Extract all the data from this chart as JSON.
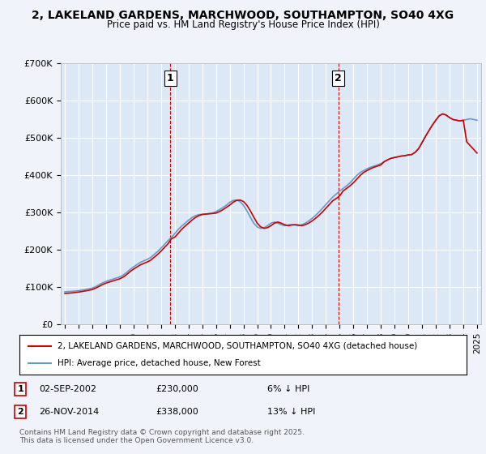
{
  "title": "2, LAKELAND GARDENS, MARCHWOOD, SOUTHAMPTON, SO40 4XG",
  "subtitle": "Price paid vs. HM Land Registry's House Price Index (HPI)",
  "legend_line1": "2, LAKELAND GARDENS, MARCHWOOD, SOUTHAMPTON, SO40 4XG (detached house)",
  "legend_line2": "HPI: Average price, detached house, New Forest",
  "marker1_label": "1",
  "marker1_date": "02-SEP-2002",
  "marker1_price": "£230,000",
  "marker1_note": "6% ↓ HPI",
  "marker2_label": "2",
  "marker2_date": "26-NOV-2014",
  "marker2_price": "£338,000",
  "marker2_note": "13% ↓ HPI",
  "footnote": "Contains HM Land Registry data © Crown copyright and database right 2025.\nThis data is licensed under the Open Government Licence v3.0.",
  "background_color": "#f0f4fa",
  "plot_bg_color": "#dce8f5",
  "red_line_color": "#cc0000",
  "blue_line_color": "#6699cc",
  "grid_color": "#ffffff",
  "marker_vline_color": "#cc0000",
  "ylim": [
    0,
    700000
  ],
  "yticks": [
    0,
    100000,
    200000,
    300000,
    400000,
    500000,
    600000,
    700000
  ],
  "ytick_labels": [
    "£0",
    "£100K",
    "£200K",
    "£300K",
    "£400K",
    "£500K",
    "£600K",
    "£700K"
  ],
  "x_start_year": 1995,
  "x_end_year": 2025,
  "marker1_x": 2002.67,
  "marker2_x": 2014.9,
  "hpi_data_x": [
    1995.0,
    1995.25,
    1995.5,
    1995.75,
    1996.0,
    1996.25,
    1996.5,
    1996.75,
    1997.0,
    1997.25,
    1997.5,
    1997.75,
    1998.0,
    1998.25,
    1998.5,
    1998.75,
    1999.0,
    1999.25,
    1999.5,
    1999.75,
    2000.0,
    2000.25,
    2000.5,
    2000.75,
    2001.0,
    2001.25,
    2001.5,
    2001.75,
    2002.0,
    2002.25,
    2002.5,
    2002.75,
    2003.0,
    2003.25,
    2003.5,
    2003.75,
    2004.0,
    2004.25,
    2004.5,
    2004.75,
    2005.0,
    2005.25,
    2005.5,
    2005.75,
    2006.0,
    2006.25,
    2006.5,
    2006.75,
    2007.0,
    2007.25,
    2007.5,
    2007.75,
    2008.0,
    2008.25,
    2008.5,
    2008.75,
    2009.0,
    2009.25,
    2009.5,
    2009.75,
    2010.0,
    2010.25,
    2010.5,
    2010.75,
    2011.0,
    2011.25,
    2011.5,
    2011.75,
    2012.0,
    2012.25,
    2012.5,
    2012.75,
    2013.0,
    2013.25,
    2013.5,
    2013.75,
    2014.0,
    2014.25,
    2014.5,
    2014.75,
    2015.0,
    2015.25,
    2015.5,
    2015.75,
    2016.0,
    2016.25,
    2016.5,
    2016.75,
    2017.0,
    2017.25,
    2017.5,
    2017.75,
    2018.0,
    2018.25,
    2018.5,
    2018.75,
    2019.0,
    2019.25,
    2019.5,
    2019.75,
    2020.0,
    2020.25,
    2020.5,
    2020.75,
    2021.0,
    2021.25,
    2021.5,
    2021.75,
    2022.0,
    2022.25,
    2022.5,
    2022.75,
    2023.0,
    2023.25,
    2023.5,
    2023.75,
    2024.0,
    2024.25,
    2024.5,
    2024.75,
    2025.0
  ],
  "hpi_data_y": [
    88000,
    88500,
    89000,
    90000,
    91000,
    92500,
    94000,
    96000,
    98000,
    102000,
    107000,
    112000,
    116000,
    119000,
    122000,
    125000,
    128000,
    133000,
    140000,
    148000,
    155000,
    161000,
    167000,
    171000,
    175000,
    180000,
    188000,
    196000,
    205000,
    215000,
    225000,
    234000,
    244000,
    255000,
    264000,
    272000,
    280000,
    287000,
    292000,
    295000,
    296000,
    297000,
    298000,
    299000,
    303000,
    308000,
    314000,
    320000,
    328000,
    333000,
    334000,
    330000,
    320000,
    305000,
    288000,
    272000,
    262000,
    258000,
    260000,
    265000,
    272000,
    275000,
    272000,
    268000,
    265000,
    267000,
    268000,
    267000,
    265000,
    268000,
    272000,
    278000,
    285000,
    293000,
    302000,
    312000,
    322000,
    332000,
    342000,
    350000,
    358000,
    365000,
    372000,
    380000,
    390000,
    400000,
    408000,
    413000,
    418000,
    422000,
    425000,
    428000,
    432000,
    437000,
    442000,
    446000,
    448000,
    450000,
    452000,
    453000,
    455000,
    456000,
    462000,
    472000,
    488000,
    505000,
    520000,
    535000,
    548000,
    560000,
    565000,
    562000,
    555000,
    550000,
    548000,
    546000,
    548000,
    550000,
    552000,
    550000,
    548000
  ],
  "price_line_x": [
    1995.0,
    1995.25,
    1995.5,
    1995.75,
    1996.0,
    1996.25,
    1996.5,
    1996.75,
    1997.0,
    1997.25,
    1997.5,
    1997.75,
    1998.0,
    1998.25,
    1998.5,
    1998.75,
    1999.0,
    1999.25,
    1999.5,
    1999.75,
    2000.0,
    2000.25,
    2000.5,
    2000.75,
    2001.0,
    2001.25,
    2001.5,
    2001.75,
    2002.0,
    2002.25,
    2002.5,
    2002.75,
    2003.0,
    2003.25,
    2003.5,
    2003.75,
    2004.0,
    2004.25,
    2004.5,
    2004.75,
    2005.0,
    2005.25,
    2005.5,
    2005.75,
    2006.0,
    2006.25,
    2006.5,
    2006.75,
    2007.0,
    2007.25,
    2007.5,
    2007.75,
    2008.0,
    2008.25,
    2008.5,
    2008.75,
    2009.0,
    2009.25,
    2009.5,
    2009.75,
    2010.0,
    2010.25,
    2010.5,
    2010.75,
    2011.0,
    2011.25,
    2011.5,
    2011.75,
    2012.0,
    2012.25,
    2012.5,
    2012.75,
    2013.0,
    2013.25,
    2013.5,
    2013.75,
    2014.0,
    2014.25,
    2014.5,
    2014.75,
    2015.0,
    2015.25,
    2015.5,
    2015.75,
    2016.0,
    2016.25,
    2016.5,
    2016.75,
    2017.0,
    2017.25,
    2017.5,
    2017.75,
    2018.0,
    2018.25,
    2018.5,
    2018.75,
    2019.0,
    2019.25,
    2019.5,
    2019.75,
    2020.0,
    2020.25,
    2020.5,
    2020.75,
    2021.0,
    2021.25,
    2021.5,
    2021.75,
    2022.0,
    2022.25,
    2022.5,
    2022.75,
    2023.0,
    2023.25,
    2023.5,
    2023.75,
    2024.0,
    2024.25,
    2024.5,
    2024.75,
    2025.0
  ],
  "price_line_y": [
    83600,
    84200,
    85000,
    86100,
    87300,
    88800,
    90300,
    92200,
    94200,
    98000,
    102700,
    107500,
    111400,
    114300,
    117200,
    120000,
    122900,
    127600,
    134400,
    142200,
    148900,
    154600,
    160300,
    164200,
    168100,
    172800,
    180600,
    188200,
    196900,
    206900,
    216200,
    230000,
    234600,
    244800,
    255300,
    264000,
    272200,
    280000,
    287200,
    292300,
    295300,
    296200,
    297100,
    298000,
    299000,
    303000,
    308200,
    314300,
    320500,
    328200,
    333100,
    334000,
    330100,
    320000,
    305200,
    288300,
    272000,
    262200,
    258100,
    260000,
    265200,
    272000,
    275100,
    272000,
    268000,
    265200,
    267100,
    268000,
    267100,
    265200,
    268000,
    272200,
    278100,
    285200,
    293100,
    302000,
    312200,
    322000,
    332100,
    338000,
    345000,
    358200,
    365100,
    372000,
    380200,
    390000,
    400200,
    408000,
    413200,
    418000,
    422100,
    425000,
    428200,
    437000,
    442100,
    446000,
    448200,
    450000,
    452100,
    453000,
    455200,
    456000,
    462100,
    472000,
    488200,
    505000,
    520100,
    535000,
    548200,
    560000,
    565100,
    562000,
    555100,
    550000,
    548200,
    546000,
    548100,
    490000,
    480000,
    470000,
    460000
  ]
}
